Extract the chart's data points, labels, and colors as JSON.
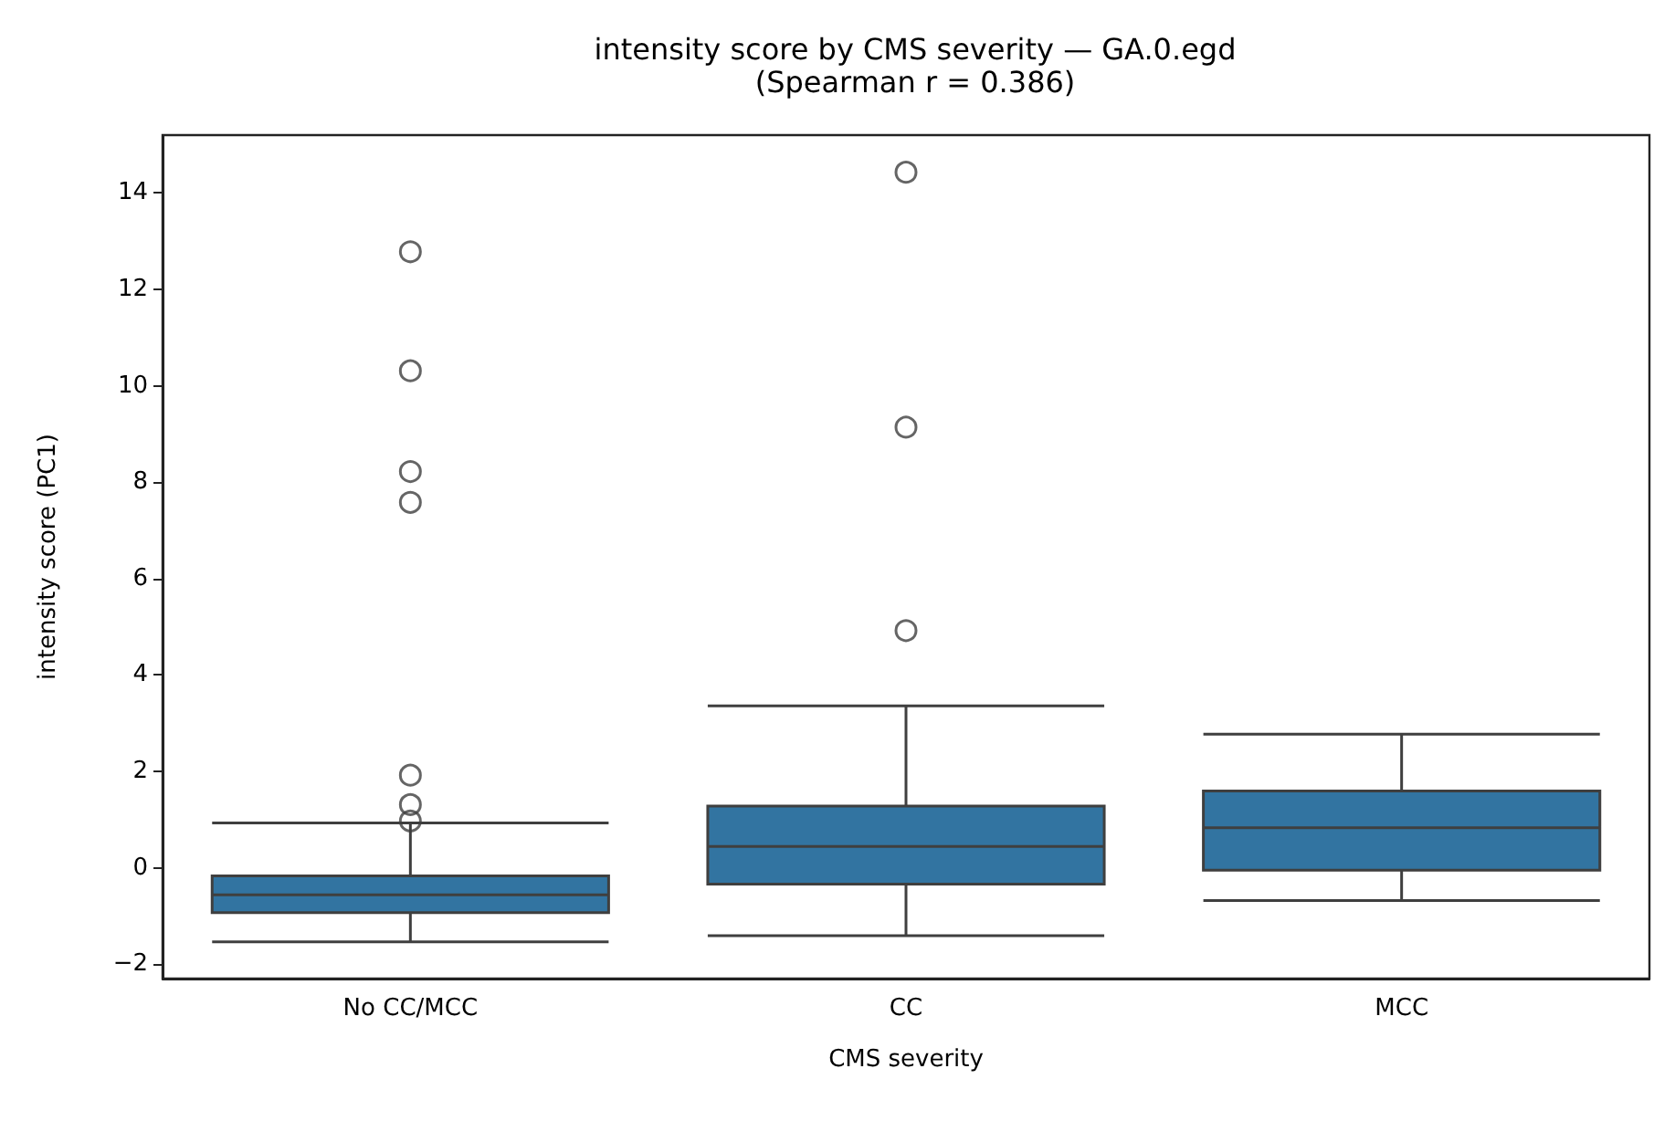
{
  "chart_data": {
    "type": "box",
    "title": "intensity score by CMS severity — GA.0.egd",
    "subtitle": "(Spearman r = 0.386)",
    "xlabel": "CMS severity",
    "ylabel": "intensity score (PC1)",
    "categories": [
      "No CC/MCC",
      "CC",
      "MCC"
    ],
    "series": [
      {
        "color": "#3274a1",
        "boxes": [
          {
            "low": -1.54,
            "q1": -0.93,
            "median": -0.56,
            "q3": -0.17,
            "high": 0.93,
            "outliers": [
              12.78,
              10.31,
              8.22,
              7.58,
              1.92,
              1.31,
              0.97
            ]
          },
          {
            "low": -1.41,
            "q1": -0.34,
            "median": 0.44,
            "q3": 1.28,
            "high": 3.36,
            "outliers": [
              14.43,
              9.14,
              4.92
            ]
          },
          {
            "low": -0.68,
            "q1": -0.05,
            "median": 0.83,
            "q3": 1.59,
            "high": 2.77
          }
        ]
      }
    ],
    "ylim": [
      -2.3,
      15.2
    ],
    "yticks": [
      -2,
      0,
      2,
      4,
      6,
      8,
      10,
      12,
      14
    ],
    "grid": false,
    "marker": "circle"
  }
}
